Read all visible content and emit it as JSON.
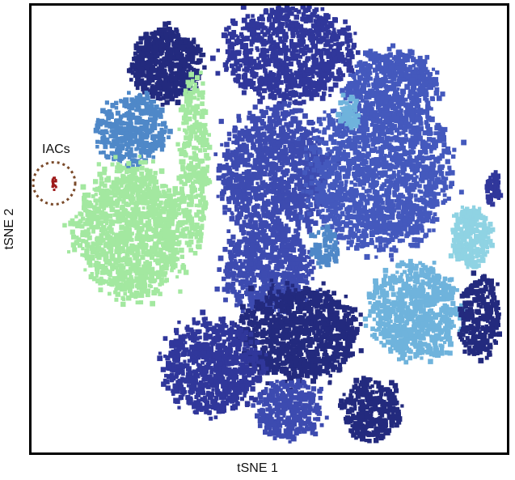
{
  "chart_data": {
    "type": "scatter",
    "xlabel": "tSNE 1",
    "ylabel": "tSNE 2",
    "grid": false,
    "ticks": false,
    "annotations": [
      {
        "text": "IACs",
        "marker": "dotted-circle",
        "target_cluster": "IACs"
      }
    ],
    "colors": {
      "navy": "#232a7e",
      "indigo": "#30379b",
      "royal": "#3d4bb0",
      "blue": "#4459bd",
      "steel": "#4f88c8",
      "sky": "#6fb3dc",
      "aqua": "#8fd3e3",
      "lightgreen": "#a3e8a0",
      "iac_red": "#9e1a1a",
      "circle": "#7a4a2a"
    },
    "clusters": [
      {
        "name": "top-left-navy",
        "color": "navy",
        "cx": -30,
        "cy": 34,
        "rx": 7,
        "ry": 6,
        "n": 620
      },
      {
        "name": "top-center",
        "color": "indigo",
        "cx": -3,
        "cy": 36,
        "rx": 13,
        "ry": 8,
        "n": 900
      },
      {
        "name": "left-steel",
        "color": "steel",
        "cx": -38,
        "cy": 22,
        "rx": 7,
        "ry": 6,
        "n": 380
      },
      {
        "name": "left-green",
        "color": "lightgreen",
        "cx": -38,
        "cy": 3,
        "rx": 11,
        "ry": 11,
        "n": 1200
      },
      {
        "name": "green-band",
        "color": "lightgreen",
        "cx": -24,
        "cy": 16,
        "rx": 3,
        "ry": 15,
        "n": 320
      },
      {
        "name": "center-royal",
        "color": "royal",
        "cx": -6,
        "cy": 14,
        "rx": 11,
        "ry": 11,
        "n": 1100
      },
      {
        "name": "right-big",
        "color": "blue",
        "cx": 17,
        "cy": 14,
        "rx": 14,
        "ry": 13,
        "n": 1500
      },
      {
        "name": "right-upper",
        "color": "blue",
        "cx": 20,
        "cy": 30,
        "rx": 9,
        "ry": 6,
        "n": 500
      },
      {
        "name": "center-lower",
        "color": "royal",
        "cx": -8,
        "cy": -4,
        "rx": 9,
        "ry": 7,
        "n": 650
      },
      {
        "name": "right-aqua",
        "color": "aqua",
        "cx": 37,
        "cy": 2,
        "rx": 4,
        "ry": 5,
        "n": 260
      },
      {
        "name": "right-sky",
        "color": "sky",
        "cx": 25,
        "cy": -12,
        "rx": 9,
        "ry": 8,
        "n": 700
      },
      {
        "name": "far-right-navy",
        "color": "navy",
        "cx": 39,
        "cy": -13,
        "rx": 4,
        "ry": 7,
        "n": 260
      },
      {
        "name": "bottom-navy",
        "color": "navy",
        "cx": -1,
        "cy": -16,
        "rx": 12,
        "ry": 8,
        "n": 1000
      },
      {
        "name": "bottom-left",
        "color": "indigo",
        "cx": -20,
        "cy": -22,
        "rx": 10,
        "ry": 8,
        "n": 750
      },
      {
        "name": "bottom-right",
        "color": "navy",
        "cx": 15,
        "cy": -30,
        "rx": 6,
        "ry": 5,
        "n": 300
      },
      {
        "name": "bottom-mid",
        "color": "royal",
        "cx": -3,
        "cy": -30,
        "rx": 7,
        "ry": 5,
        "n": 320
      },
      {
        "name": "mid-sky",
        "color": "sky",
        "cx": 10,
        "cy": 25,
        "rx": 2,
        "ry": 3,
        "n": 60
      },
      {
        "name": "center-sky",
        "color": "steel",
        "cx": 5,
        "cy": 0,
        "rx": 3,
        "ry": 3,
        "n": 70
      },
      {
        "name": "far-right-small",
        "color": "indigo",
        "cx": 42,
        "cy": 11,
        "rx": 1.5,
        "ry": 3,
        "n": 60
      },
      {
        "name": "IACs",
        "color": "iac_red",
        "cx": -55,
        "cy": 12,
        "rx": 0.5,
        "ry": 1,
        "n": 16
      }
    ],
    "xlim": [
      -60,
      45
    ],
    "ylim": [
      -38,
      45
    ]
  }
}
